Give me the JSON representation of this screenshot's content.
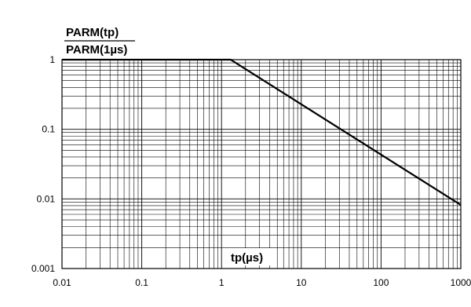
{
  "chart_data": {
    "type": "line",
    "title": "",
    "ylabel": {
      "numerator": "PARM(tp)",
      "denominator": "PARM(1µs)"
    },
    "xlabel": "tp(µs)",
    "x_scale": "log",
    "y_scale": "log",
    "xlim": [
      0.01,
      1000
    ],
    "ylim": [
      0.001,
      1
    ],
    "x_ticks": [
      {
        "value": 0.01,
        "label": "0.01"
      },
      {
        "value": 0.1,
        "label": "0.1"
      },
      {
        "value": 1,
        "label": "1"
      },
      {
        "value": 10,
        "label": "10"
      },
      {
        "value": 100,
        "label": "100"
      },
      {
        "value": 1000,
        "label": "1000"
      }
    ],
    "y_ticks": [
      {
        "value": 1,
        "label": "1"
      },
      {
        "value": 0.1,
        "label": "0.1"
      },
      {
        "value": 0.01,
        "label": "0.01"
      },
      {
        "value": 0.001,
        "label": "0.001"
      }
    ],
    "grid": true,
    "series": [
      {
        "x": [
          0.01,
          1.3,
          1000
        ],
        "y": [
          1,
          1,
          0.0082
        ]
      }
    ]
  }
}
